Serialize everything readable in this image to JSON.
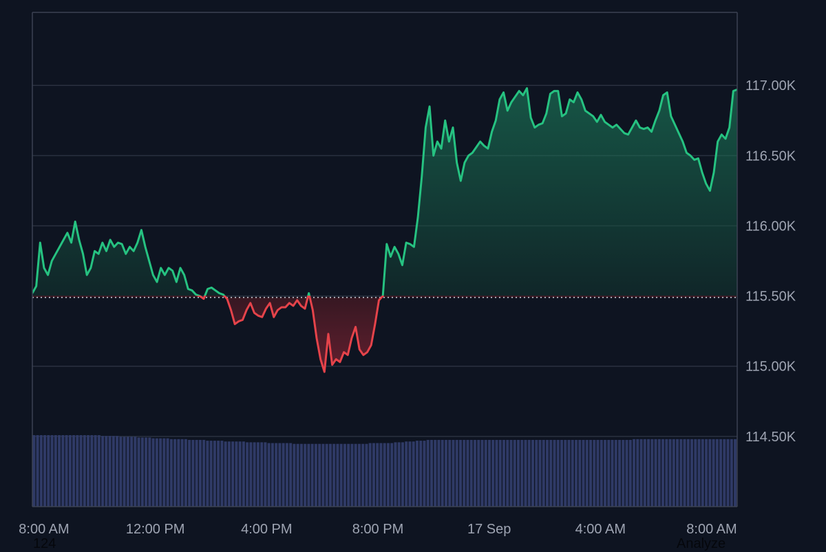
{
  "chart_data": {
    "type": "area",
    "baseline": 115490,
    "ylim": [
      114000,
      117520
    ],
    "yticks": [
      114500,
      115000,
      115500,
      116000,
      116500,
      117000
    ],
    "ytick_labels": [
      "114.50K",
      "115.00K",
      "115.50K",
      "116.00K",
      "116.50K",
      "117.00K"
    ],
    "xtick_labels": [
      "8:00 AM",
      "12:00 PM",
      "4:00 PM",
      "8:00 PM",
      "17 Sep",
      "4:00 AM",
      "8:00 AM"
    ],
    "colors": {
      "up": "#26c281",
      "down": "#e5434a",
      "volume": "#2f3a66",
      "grid": "#2a3140",
      "baseline": "#c8ccd4",
      "background": "#0e1421"
    },
    "series": [
      {
        "values": [
          115520,
          115570,
          115880,
          115700,
          115650,
          115750,
          115800,
          115850,
          115900,
          115950,
          115880,
          116030,
          115900,
          115800,
          115650,
          115700,
          115820,
          115800,
          115880,
          115820,
          115900,
          115850,
          115880,
          115870,
          115800,
          115850,
          115820,
          115880,
          115970,
          115850,
          115750,
          115650,
          115600,
          115700,
          115650,
          115700,
          115680,
          115600,
          115700,
          115650,
          115550,
          115540,
          115510,
          115500,
          115480,
          115550,
          115560,
          115540,
          115520,
          115510,
          115480,
          115400,
          115300,
          115320,
          115330,
          115400,
          115450,
          115380,
          115360,
          115350,
          115410,
          115450,
          115350,
          115400,
          115420,
          115420,
          115450,
          115430,
          115470,
          115430,
          115410,
          115520,
          115400,
          115200,
          115050,
          114960,
          115230,
          115010,
          115050,
          115030,
          115100,
          115080,
          115200,
          115280,
          115120,
          115080,
          115100,
          115150,
          115300,
          115470,
          115500,
          115870,
          115780,
          115850,
          115800,
          115720,
          115880,
          115870,
          115850,
          116060,
          116350,
          116700,
          116850,
          116500,
          116600,
          116550,
          116750,
          116600,
          116700,
          116450,
          116320,
          116450,
          116500,
          116520,
          116560,
          116600,
          116570,
          116550,
          116670,
          116750,
          116900,
          116950,
          116820,
          116880,
          116920,
          116960,
          116930,
          116980,
          116770,
          116700,
          116720,
          116730,
          116800,
          116940,
          116960,
          116960,
          116780,
          116800,
          116900,
          116880,
          116950,
          116900,
          116820,
          116800,
          116780,
          116740,
          116790,
          116740,
          116720,
          116700,
          116720,
          116690,
          116660,
          116650,
          116700,
          116750,
          116700,
          116690,
          116700,
          116670,
          116750,
          116820,
          116930,
          116950,
          116780,
          116720,
          116660,
          116600,
          116520,
          116500,
          116470,
          116480,
          116380,
          116300,
          116250,
          116380,
          116600,
          116650,
          116620,
          116700,
          116960,
          116970
        ]
      }
    ],
    "volume": [
      0.9,
      0.9,
      0.9,
      0.9,
      0.9,
      0.9,
      0.9,
      0.9,
      0.9,
      0.9,
      0.9,
      0.9,
      0.9,
      0.9,
      0.9,
      0.9,
      0.9,
      0.9,
      0.9,
      0.89,
      0.89,
      0.89,
      0.89,
      0.89,
      0.88,
      0.88,
      0.88,
      0.88,
      0.88,
      0.87,
      0.87,
      0.87,
      0.87,
      0.86,
      0.86,
      0.86,
      0.86,
      0.86,
      0.85,
      0.85,
      0.85,
      0.85,
      0.85,
      0.84,
      0.84,
      0.84,
      0.84,
      0.84,
      0.83,
      0.83,
      0.83,
      0.83,
      0.83,
      0.82,
      0.82,
      0.82,
      0.82,
      0.82,
      0.82,
      0.81,
      0.81,
      0.81,
      0.81,
      0.81,
      0.81,
      0.8,
      0.8,
      0.8,
      0.8,
      0.8,
      0.8,
      0.8,
      0.79,
      0.79,
      0.79,
      0.79,
      0.79,
      0.79,
      0.79,
      0.79,
      0.79,
      0.79,
      0.79,
      0.79,
      0.79,
      0.79,
      0.79,
      0.79,
      0.79,
      0.79,
      0.79,
      0.79,
      0.79,
      0.8,
      0.8,
      0.8,
      0.8,
      0.8,
      0.8,
      0.8,
      0.81,
      0.81,
      0.81,
      0.82,
      0.82,
      0.82,
      0.83,
      0.83,
      0.83,
      0.84,
      0.84,
      0.84,
      0.84,
      0.84,
      0.84,
      0.84,
      0.84,
      0.84,
      0.84,
      0.84,
      0.84,
      0.84,
      0.84,
      0.84,
      0.84,
      0.84,
      0.84,
      0.84,
      0.84,
      0.84,
      0.84,
      0.84,
      0.84,
      0.84,
      0.84,
      0.84,
      0.84,
      0.84,
      0.84,
      0.84,
      0.84,
      0.84,
      0.84,
      0.84,
      0.84,
      0.84,
      0.84,
      0.84,
      0.84,
      0.84,
      0.84,
      0.84,
      0.84,
      0.84,
      0.84,
      0.84,
      0.84,
      0.84,
      0.84,
      0.84,
      0.84,
      0.84,
      0.84,
      0.84,
      0.84,
      0.84,
      0.85,
      0.85,
      0.85,
      0.85,
      0.85,
      0.85,
      0.85,
      0.85,
      0.85,
      0.85,
      0.85,
      0.85,
      0.85,
      0.85,
      0.85,
      0.85,
      0.85,
      0.85,
      0.85,
      0.85,
      0.85,
      0.85,
      0.85,
      0.85,
      0.85,
      0.85,
      0.85,
      0.85,
      0.85
    ]
  },
  "footer": {
    "count_label": "124",
    "analyze_label": "Analyze"
  }
}
